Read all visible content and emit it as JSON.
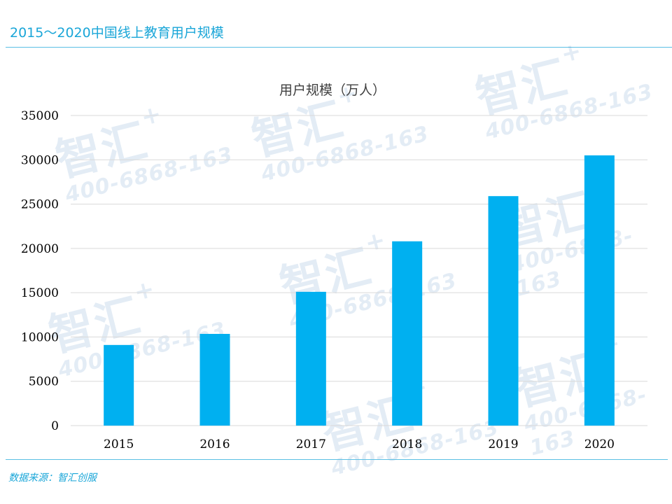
{
  "page": {
    "title": "2015～2020中国线上教育用户规模",
    "source_note": "数据来源：智汇创服",
    "watermark": {
      "logo_text": "智汇",
      "phone": "400-6868-163"
    },
    "colors": {
      "title": "#1aa6d8",
      "rule": "#5bbfe4",
      "bar": "#00b0f0",
      "grid": "#d9d9d9"
    }
  },
  "chart_data": {
    "type": "bar",
    "title": "用户规模（万人）",
    "categories": [
      "2015",
      "2016",
      "2017",
      "2018",
      "2019",
      "2020"
    ],
    "values": [
      9100,
      10350,
      15100,
      20800,
      25900,
      30500
    ],
    "xlabel": "",
    "ylabel": "",
    "ylim": [
      0,
      35000
    ],
    "yticks": [
      "0",
      "5000",
      "10000",
      "15000",
      "20000",
      "25000",
      "30000",
      "35000"
    ],
    "grid": true,
    "legend": "none"
  }
}
